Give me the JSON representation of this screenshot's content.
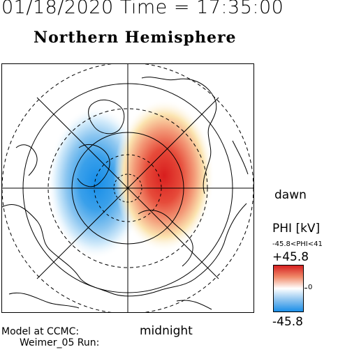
{
  "header": {
    "timestamp": "01/18/2020 Time = 17:35:00",
    "hemisphere": "Northern Hemisphere"
  },
  "map": {
    "projection": "polar",
    "orientation_labels": {
      "dawn": "dawn",
      "midnight": "midnight"
    },
    "potential_pattern": {
      "positive_cell": "dawn side",
      "negative_cell": "dusk side"
    }
  },
  "colorbar": {
    "title": "PHI [kV]",
    "range_text": "-45.8<PHI<41",
    "max_label": "+45.8",
    "zero_label": "0",
    "min_label": "-45.8",
    "colors": {
      "max": "#d62020",
      "mid": "#ffffff",
      "min": "#1a8ee8"
    }
  },
  "footer": {
    "model": "Model at CCMC:",
    "run": "Weimer_05 Run:"
  }
}
